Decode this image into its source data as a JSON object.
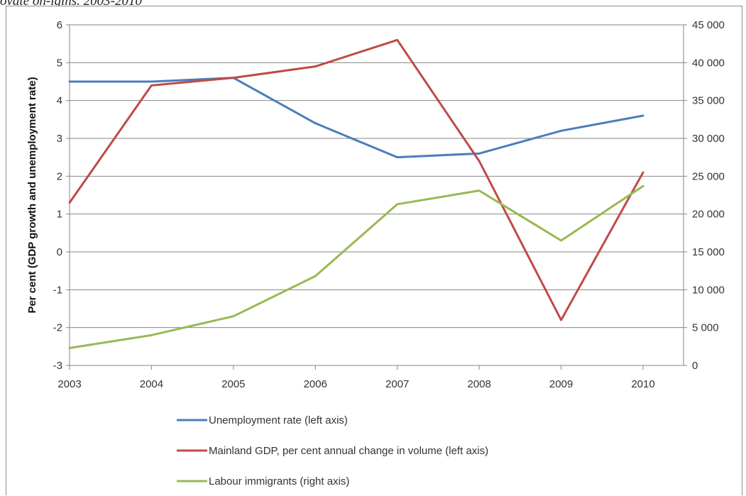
{
  "caption": "ovate on-igins. 2003-2010",
  "chart_data": {
    "type": "line",
    "x": [
      2003,
      2004,
      2005,
      2006,
      2007,
      2008,
      2009,
      2010
    ],
    "categories": [
      "2003",
      "2004",
      "2005",
      "2006",
      "2007",
      "2008",
      "2009",
      "2010"
    ],
    "ylabel": "Per cent (GDP growth and unemployment rate)",
    "ylim": [
      -3,
      6
    ],
    "y_ticks": [
      "6",
      "5",
      "4",
      "3",
      "2",
      "1",
      "0",
      "-1",
      "-2",
      "-3"
    ],
    "y2lim": [
      0,
      45000
    ],
    "y2_ticks": [
      "45 000",
      "40 000",
      "35 000",
      "30 000",
      "25 000",
      "20 000",
      "15 000",
      "10 000",
      "5 000",
      "0"
    ],
    "grid": true,
    "legend_position": "bottom",
    "series": [
      {
        "name": "Unemployment rate (left axis)",
        "axis": "left",
        "color": "#4a7ebb",
        "values": [
          4.5,
          4.5,
          4.6,
          3.4,
          2.5,
          2.6,
          3.2,
          3.6
        ]
      },
      {
        "name": "Mainland GDP, per cent annual change in volume (left axis)",
        "axis": "left",
        "color": "#be4b48",
        "values": [
          1.3,
          4.4,
          4.6,
          4.9,
          5.6,
          2.4,
          -1.8,
          2.1
        ]
      },
      {
        "name": "Labour immigrants (right axis)",
        "axis": "right",
        "color": "#98b954",
        "values": [
          2300,
          4000,
          6500,
          11800,
          21300,
          23100,
          16500,
          23700
        ]
      }
    ]
  }
}
